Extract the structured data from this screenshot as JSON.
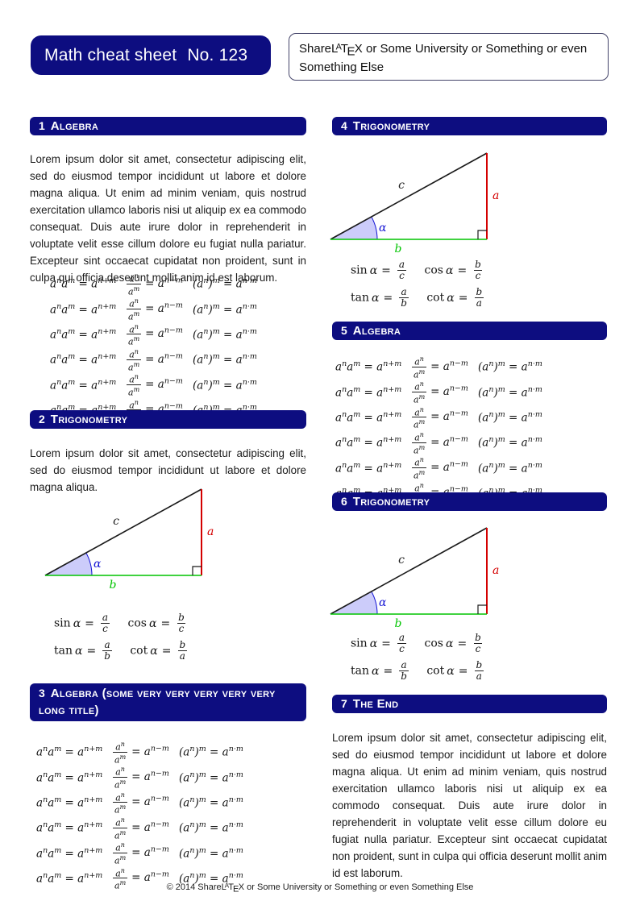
{
  "colors": {
    "navy": "#0d0d80",
    "red": "#d40000",
    "green": "#00c400",
    "blue": "#1414d4",
    "wedge": "#ccccfa",
    "ink": "#1a1a1a"
  },
  "header": {
    "sheet_title": "Math cheat sheet",
    "sheet_number": "No. 123"
  },
  "institution": {
    "pre": "Share",
    "latex": {
      "L": "L",
      "A": "A",
      "T": "T",
      "E": "E",
      "X": "X"
    },
    "rest": " or Some University or Something or even Something Else"
  },
  "sections": [
    {
      "number": "1",
      "title": "Algebra"
    },
    {
      "number": "2",
      "title": "Trigonometry"
    },
    {
      "number": "3",
      "title": "Algebra (some very very very very very long title)"
    },
    {
      "number": "4",
      "title": "Trigonometry"
    },
    {
      "number": "5",
      "title": "Algebra"
    },
    {
      "number": "6",
      "title": "Trigonometry"
    },
    {
      "number": "7",
      "title": "The End"
    }
  ],
  "paragraphs": {
    "long": "Lorem ipsum dolor sit amet, consectetur adipiscing elit, sed do eiusmod tempor incididunt ut labore et dolore magna aliqua. Ut enim ad minim veniam, quis nostrud exercitation ullamco laboris nisi ut aliquip ex ea commodo consequat. Duis aute irure dolor in reprehenderit in voluptate velit esse cillum dolore eu fugiat nulla pariatur. Excepteur sint occaecat cupidatat non proident, sunt in culpa qui officia deserunt mollit anim id est laborum.",
    "short": "Lorem ipsum dolor sit amet, consectetur adipiscing elit, sed do eiusmod tempor incididunt ut labore et dolore magna aliqua."
  },
  "algebra": {
    "product": "a<sup>n</sup>a<sup>m</sup> = a<sup>n+m</sup>",
    "quotient_num": "a<sup>n</sup>",
    "quotient_den": "a<sup>m</sup>",
    "quotient_rhs": "= a<sup>n−m</sup>",
    "power": "(a<sup>n</sup>)<sup>m</sup> = a<sup>n·m</sup>"
  },
  "trig": {
    "sin": "sin",
    "cos": "cos",
    "tan": "tan",
    "cot": "cot",
    "alpha": "α",
    "eq": "=",
    "a": "a",
    "b": "b",
    "c": "c"
  },
  "triangle": {
    "a": "a",
    "b": "b",
    "c": "c",
    "alpha": "α"
  },
  "footer": {
    "pre": "© 2014  Share",
    "rest": " or Some University or Something or even Something Else"
  }
}
